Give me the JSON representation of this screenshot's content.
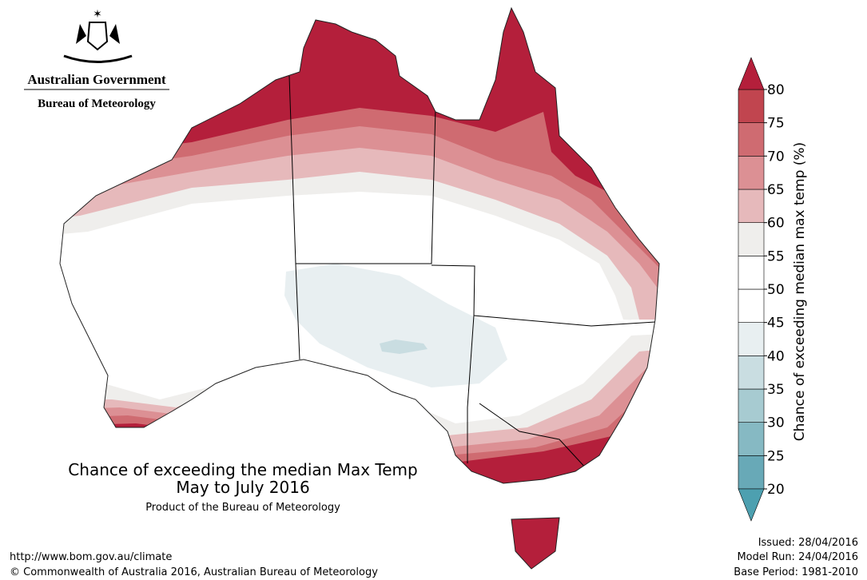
{
  "header": {
    "agency": "Australian Government",
    "bureau": "Bureau of Meteorology"
  },
  "title": {
    "line1": "Chance of exceeding the median Max Temp",
    "line2": "May to July 2016",
    "product": "Product of the Bureau of Meteorology"
  },
  "legend": {
    "label": "Chance of exceeding median max temp (%)",
    "ticks": [
      20,
      25,
      30,
      35,
      40,
      45,
      50,
      55,
      60,
      65,
      70,
      75,
      80
    ],
    "colors": [
      "#68a9b7",
      "#86b9c3",
      "#a7cbd1",
      "#c9dde1",
      "#e8eff1",
      "#ffffff",
      "#ffffff",
      "#efeeec",
      "#e6b9bb",
      "#dc9094",
      "#cf6b71",
      "#c1454f"
    ],
    "under_color": "#4da0b0",
    "over_color": "#b41f3b"
  },
  "footer": {
    "url": "http://www.bom.gov.au/climate",
    "copyright": "© Commonwealth of Australia 2016, Australian Bureau of Meteorology",
    "issued": "Issued: 28/04/2016",
    "model_run": "Model Run: 24/04/2016",
    "base_period": "Base Period: 1981-2010"
  }
}
